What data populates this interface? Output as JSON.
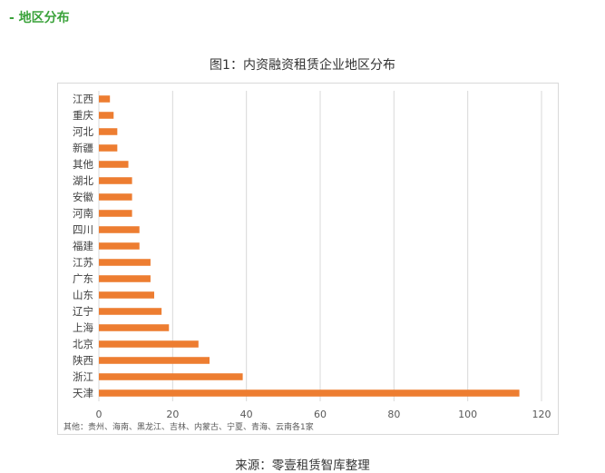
{
  "section_heading": "- 地区分布",
  "source": "来源：零壹租赁智库整理",
  "chart_data": {
    "type": "bar",
    "orientation": "horizontal",
    "title": "图1：内资融资租赁企业地区分布",
    "xlabel": "",
    "ylabel": "",
    "categories": [
      "江西",
      "重庆",
      "河北",
      "新疆",
      "其他",
      "湖北",
      "安徽",
      "河南",
      "四川",
      "福建",
      "江苏",
      "广东",
      "山东",
      "辽宁",
      "上海",
      "北京",
      "陕西",
      "浙江",
      "天津"
    ],
    "values": [
      3,
      4,
      5,
      5,
      8,
      9,
      9,
      9,
      11,
      11,
      14,
      14,
      15,
      17,
      19,
      27,
      30,
      39,
      114
    ],
    "xlim": [
      0,
      120
    ],
    "xticks": [
      0,
      20,
      40,
      60,
      80,
      100,
      120
    ],
    "grid": "vertical",
    "legend": "none",
    "bar_color": "#ed7d31",
    "grid_color": "#d9d9d9",
    "note": "其他：贵州、海南、黑龙江、吉林、内蒙古、宁夏、青海、云南各1家"
  }
}
